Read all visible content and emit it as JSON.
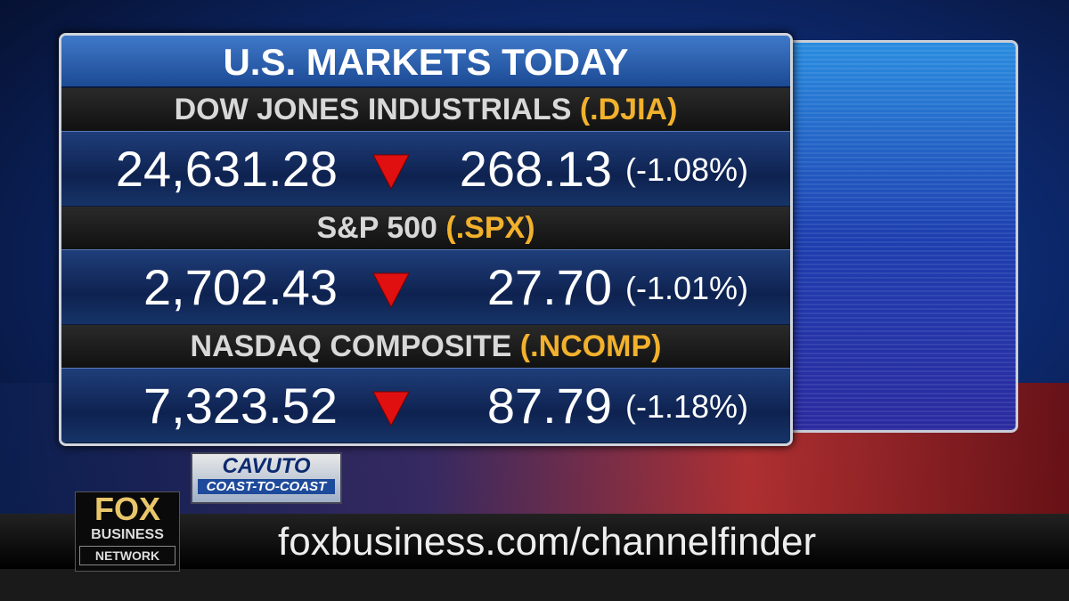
{
  "header": {
    "title": "U.S. MARKETS TODAY"
  },
  "markets": [
    {
      "name": "DOW JONES INDUSTRIALS",
      "ticker": "(.DJIA)",
      "value": "24,631.28",
      "change": "268.13",
      "percent": "(-1.08%)"
    },
    {
      "name": "S&P 500",
      "ticker": "(.SPX)",
      "value": "2,702.43",
      "change": "27.70",
      "percent": "(-1.01%)"
    },
    {
      "name": "NASDAQ COMPOSITE",
      "ticker": "(.NCOMP)",
      "value": "7,323.52",
      "change": "87.79",
      "percent": "(-1.18%)"
    }
  ],
  "show": {
    "name": "CAVUTO",
    "subtitle": "COAST-TO-COAST"
  },
  "logo": {
    "top": "FOX",
    "middle": "BUSINESS",
    "bottom": "NETWORK"
  },
  "footer": {
    "url": "foxbusiness.com/channelfinder"
  }
}
